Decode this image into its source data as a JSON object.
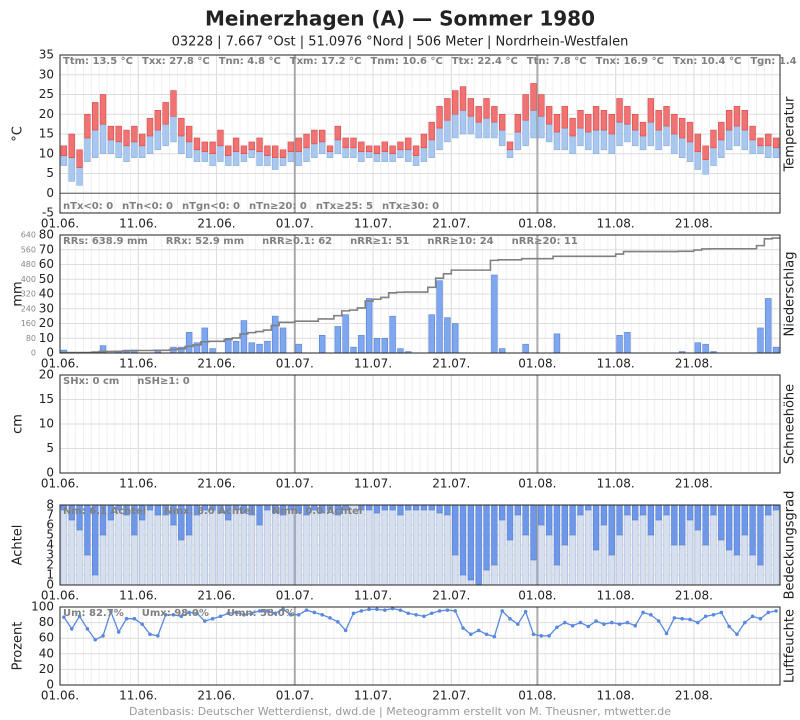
{
  "title": "Meinerzhagen (A)  —  Sommer 1980",
  "subtitle": "03228  |  7.667 °Ost  |  51.0976 °Nord  |  506 Meter  |  Nordrhein-Westfalen",
  "footer": "Datenbasis: Deutscher Wetterdienst, dwd.de  |  Meteogramm erstellt von M. Theusner, mtwetter.de",
  "chart_data": [
    {
      "type": "range_bar",
      "ylabel": "°C",
      "side_label": "Temperatur",
      "xlim": [
        0,
        92
      ],
      "ylim": [
        -5,
        35
      ],
      "yticks": [
        -5,
        0,
        5,
        10,
        15,
        20,
        25,
        30,
        35
      ],
      "xticks": [
        {
          "value": 0,
          "label": "01.06."
        },
        {
          "value": 10,
          "label": "11.06."
        },
        {
          "value": 20,
          "label": "21.06."
        },
        {
          "value": 30,
          "label": "01.07."
        },
        {
          "value": 40,
          "label": "11.07."
        },
        {
          "value": 50,
          "label": "21.07."
        },
        {
          "value": 61,
          "label": "01.08."
        },
        {
          "value": 71,
          "label": "11.08."
        },
        {
          "value": 81,
          "label": "21.08."
        }
      ],
      "stats_top": [
        "Ttm: 13.5 °C",
        "Txx: 27.8 °C",
        "Tnn: 4.8 °C",
        "Txm: 17.2 °C",
        "Tnm: 10.6 °C",
        "Ttx: 22.4 °C",
        "Ttn: 7.8 °C",
        "Tnx: 16.9 °C",
        "Txn: 10.4 °C",
        "Tgn: 1.4 °C"
      ],
      "stats_bottom": [
        "nTx<0: 0",
        "nTn<0: 0",
        "nTgn<0: 0",
        "nTn≥20: 0",
        "nTx≥25: 5",
        "nTx≥30: 0"
      ],
      "color_upper": "#f07272",
      "color_lower": "#a9c8ef",
      "x": [
        0,
        1,
        2,
        3,
        4,
        5,
        6,
        7,
        8,
        9,
        10,
        11,
        12,
        13,
        14,
        15,
        16,
        17,
        18,
        19,
        20,
        21,
        22,
        23,
        24,
        25,
        26,
        27,
        28,
        29,
        30,
        31,
        32,
        33,
        34,
        35,
        36,
        37,
        38,
        39,
        40,
        41,
        42,
        43,
        44,
        45,
        46,
        47,
        48,
        49,
        50,
        51,
        52,
        53,
        54,
        55,
        56,
        57,
        58,
        59,
        60,
        61,
        62,
        63,
        64,
        65,
        66,
        67,
        68,
        69,
        70,
        71,
        72,
        73,
        74,
        75,
        76,
        77,
        78,
        79,
        80,
        81,
        82,
        83,
        84,
        85,
        86,
        87,
        88,
        89,
        90,
        91
      ],
      "values_max": [
        12,
        15,
        11,
        20,
        23,
        25,
        17,
        17,
        16,
        17,
        15,
        19,
        21,
        23,
        26,
        19,
        17,
        14,
        13,
        13,
        16,
        12,
        14,
        12,
        13,
        14,
        12,
        12,
        11,
        13,
        14,
        15,
        16,
        16,
        12,
        17,
        14,
        14,
        13,
        12,
        12,
        13,
        12,
        13,
        14,
        12,
        15,
        18,
        22,
        24,
        26,
        27,
        24,
        22,
        24,
        22,
        20,
        13,
        20,
        25,
        27.8,
        25,
        22,
        20,
        22,
        19,
        21,
        20,
        22,
        21,
        20,
        24,
        22,
        20,
        18,
        24,
        21,
        22,
        20,
        19,
        18,
        15,
        12,
        16,
        18,
        21,
        22,
        21,
        17,
        14,
        15,
        14
      ],
      "values_mean": [
        9.5,
        9,
        6.5,
        14,
        16,
        17.5,
        13.5,
        13,
        12,
        13,
        12,
        14.5,
        16,
        17.5,
        19.5,
        14.5,
        13,
        11,
        10.5,
        10,
        12,
        9.5,
        10.5,
        10,
        11,
        10.5,
        9.5,
        9,
        9,
        10.5,
        10.5,
        11.5,
        12.5,
        13,
        10.5,
        13.5,
        11.5,
        11.5,
        10.5,
        10.5,
        10,
        10.5,
        10,
        11,
        11,
        9.5,
        11.5,
        13.5,
        16.5,
        18.5,
        20,
        21,
        19.5,
        18,
        19,
        18,
        16,
        11,
        15.5,
        18.5,
        21,
        19.5,
        17.5,
        15.5,
        16.5,
        14.5,
        16.5,
        15.5,
        16,
        16,
        15,
        18,
        17.5,
        16,
        14.5,
        18,
        16,
        17,
        15,
        14,
        13,
        10.5,
        8.5,
        11.5,
        13.5,
        16,
        17,
        16,
        13.5,
        12,
        12,
        11.5
      ],
      "values_min": [
        7,
        3,
        2,
        8,
        9,
        10,
        10,
        9,
        8,
        9,
        9,
        10,
        11,
        12,
        13,
        10,
        9,
        8,
        8,
        7,
        8,
        7,
        7,
        8,
        9,
        7,
        7,
        6,
        7,
        8,
        7,
        8,
        9,
        10,
        9,
        10,
        9,
        9,
        8,
        9,
        8,
        8,
        8,
        9,
        8,
        7,
        8,
        9,
        11,
        13,
        14,
        15,
        15,
        14,
        14,
        14,
        12,
        9,
        11,
        12,
        14,
        14,
        13,
        11,
        11,
        10,
        12,
        11,
        10,
        11,
        10,
        12,
        13,
        12,
        11,
        12,
        11,
        12,
        10,
        9,
        8,
        6,
        4.8,
        7,
        9,
        11,
        12,
        11,
        10,
        10,
        9,
        9
      ]
    },
    {
      "type": "bar",
      "ylabel": "mm",
      "side_label": "Niederschlag",
      "xlim": [
        0,
        92
      ],
      "ylim": [
        0,
        80
      ],
      "yticks": [
        0,
        10,
        20,
        30,
        40,
        50,
        60,
        70,
        80
      ],
      "y2lim": [
        0,
        640
      ],
      "y2ticks": [
        0,
        80,
        160,
        240,
        320,
        400,
        480,
        560,
        640
      ],
      "xticks": [
        {
          "value": 0,
          "label": "01.06."
        },
        {
          "value": 10,
          "label": "11.06."
        },
        {
          "value": 20,
          "label": "21.06."
        },
        {
          "value": 30,
          "label": "01.07."
        },
        {
          "value": 40,
          "label": "11.07."
        },
        {
          "value": 50,
          "label": "21.07."
        },
        {
          "value": 61,
          "label": "01.08."
        },
        {
          "value": 71,
          "label": "11.08."
        },
        {
          "value": 81,
          "label": "21.08."
        }
      ],
      "stats_top": [
        "RRs: 638.9 mm",
        "RRx: 52.9 mm",
        "nRR≥0.1: 62",
        "nRR≥1: 51",
        "nRR≥10: 24",
        "nRR≥20: 11"
      ],
      "color": "#7fa7ef",
      "line_color": "#808080",
      "x": [
        0,
        1,
        2,
        3,
        4,
        5,
        6,
        7,
        8,
        9,
        10,
        11,
        12,
        13,
        14,
        15,
        16,
        17,
        18,
        19,
        20,
        21,
        22,
        23,
        24,
        25,
        26,
        27,
        28,
        29,
        30,
        31,
        32,
        33,
        34,
        35,
        36,
        37,
        38,
        39,
        40,
        41,
        42,
        43,
        44,
        45,
        46,
        47,
        48,
        49,
        50,
        51,
        52,
        53,
        54,
        55,
        56,
        57,
        58,
        59,
        60,
        61,
        62,
        63,
        64,
        65,
        66,
        67,
        68,
        69,
        70,
        71,
        72,
        73,
        74,
        75,
        76,
        77,
        78,
        79,
        80,
        81,
        82,
        83,
        84,
        85,
        86,
        87,
        88,
        89,
        90,
        91
      ],
      "values": [
        2,
        0.5,
        0,
        0,
        1,
        5,
        0,
        1,
        2,
        2,
        0,
        0,
        1,
        0,
        4,
        4,
        14,
        7,
        17,
        3,
        0,
        10,
        8,
        22,
        7,
        6,
        8,
        25,
        17,
        0,
        6,
        0,
        0,
        12,
        0,
        18,
        26,
        4,
        12,
        37,
        10,
        10,
        25,
        3,
        1,
        0,
        0,
        26,
        49,
        24,
        20,
        0,
        0,
        0,
        0,
        52.9,
        3,
        0,
        0,
        6,
        0,
        0,
        0,
        13,
        0,
        0,
        0,
        0,
        0,
        0,
        0,
        12,
        14,
        0,
        0,
        0,
        0,
        0,
        0,
        1,
        0,
        7,
        6,
        1,
        0,
        0,
        0,
        0,
        0,
        17,
        37,
        4
      ]
    },
    {
      "type": "bar",
      "ylabel": "cm",
      "side_label": "Schneehöhe",
      "xlim": [
        0,
        92
      ],
      "ylim": [
        0,
        20
      ],
      "yticks": [
        0,
        5,
        10,
        15,
        20
      ],
      "xticks": [
        {
          "value": 0,
          "label": "01.06."
        },
        {
          "value": 10,
          "label": "11.06."
        },
        {
          "value": 20,
          "label": "21.06."
        },
        {
          "value": 30,
          "label": "01.07."
        },
        {
          "value": 40,
          "label": "11.07."
        },
        {
          "value": 50,
          "label": "21.07."
        },
        {
          "value": 61,
          "label": "01.08."
        },
        {
          "value": 71,
          "label": "11.08."
        },
        {
          "value": 81,
          "label": "21.08."
        }
      ],
      "stats_top": [
        "SHx: 0 cm",
        "nSH≥1: 0"
      ]
    },
    {
      "type": "cloud_bar",
      "ylabel": "Achtel",
      "side_label": "Bedeckungsgrad",
      "xlim": [
        0,
        92
      ],
      "ylim": [
        0,
        8
      ],
      "yticks": [
        0,
        1,
        2,
        3,
        4,
        5,
        6,
        7,
        8
      ],
      "xticks": [
        {
          "value": 0,
          "label": "01.06."
        },
        {
          "value": 10,
          "label": "11.06."
        },
        {
          "value": 20,
          "label": "21.06."
        },
        {
          "value": 30,
          "label": "01.07."
        },
        {
          "value": 40,
          "label": "11.07."
        },
        {
          "value": 50,
          "label": "21.07."
        },
        {
          "value": 61,
          "label": "01.08."
        },
        {
          "value": 71,
          "label": "11.08."
        },
        {
          "value": 81,
          "label": "21.08."
        }
      ],
      "stats_top": [
        "Nm: 6.1 Achtel",
        "Nmx: 8.0 Achtel",
        "Nmn: 0.0 Achtel"
      ],
      "color": "#d6dff0",
      "color_top": "#6f97e8",
      "x": [
        0,
        1,
        2,
        3,
        4,
        5,
        6,
        7,
        8,
        9,
        10,
        11,
        12,
        13,
        14,
        15,
        16,
        17,
        18,
        19,
        20,
        21,
        22,
        23,
        24,
        25,
        26,
        27,
        28,
        29,
        30,
        31,
        32,
        33,
        34,
        35,
        36,
        37,
        38,
        39,
        40,
        41,
        42,
        43,
        44,
        45,
        46,
        47,
        48,
        49,
        50,
        51,
        52,
        53,
        54,
        55,
        56,
        57,
        58,
        59,
        60,
        61,
        62,
        63,
        64,
        65,
        66,
        67,
        68,
        69,
        70,
        71,
        72,
        73,
        74,
        75,
        76,
        77,
        78,
        79,
        80,
        81,
        82,
        83,
        84,
        85,
        86,
        87,
        88,
        89,
        90,
        91
      ],
      "values": [
        7.5,
        6.5,
        5.5,
        3,
        1,
        5,
        6.5,
        7.5,
        7,
        5,
        6.5,
        7.5,
        7,
        7,
        6,
        4.5,
        5,
        7,
        7.5,
        7.5,
        7.2,
        6.5,
        7.5,
        7.2,
        7,
        6,
        7.5,
        7.2,
        7,
        7.5,
        7.2,
        7,
        7.5,
        7.2,
        7.5,
        7,
        7.5,
        8,
        7.5,
        7.5,
        7.2,
        7.5,
        7.5,
        7,
        7.5,
        7.5,
        7.5,
        7.5,
        7.2,
        7,
        3,
        1,
        0.5,
        0,
        1.5,
        2,
        6.5,
        4.5,
        7,
        5,
        2.5,
        6,
        5,
        2,
        4,
        5,
        7,
        7.5,
        3.5,
        6,
        3,
        5,
        7,
        6.5,
        7,
        5,
        6.5,
        7,
        4,
        4,
        6.5,
        5.5,
        4,
        7,
        4.5,
        3.5,
        3,
        5,
        3,
        2,
        7,
        7.5
      ]
    },
    {
      "type": "line",
      "ylabel": "Prozent",
      "side_label": "Luftfeuchte",
      "xlim": [
        0,
        92
      ],
      "ylim": [
        0,
        100
      ],
      "yticks": [
        0,
        20,
        40,
        60,
        80,
        100
      ],
      "xticks": [
        {
          "value": 0,
          "label": "01.06."
        },
        {
          "value": 10,
          "label": "11.06."
        },
        {
          "value": 20,
          "label": "21.06."
        },
        {
          "value": 30,
          "label": "01.07."
        },
        {
          "value": 40,
          "label": "11.07."
        },
        {
          "value": 50,
          "label": "21.07."
        },
        {
          "value": 61,
          "label": "01.08."
        },
        {
          "value": 71,
          "label": "11.08."
        },
        {
          "value": 81,
          "label": "21.08."
        }
      ],
      "stats_top": [
        "Um: 82.7%",
        "Umx: 98.0%",
        "Umn: 58.0%"
      ],
      "color": "#5a8ae0",
      "x": [
        0,
        1,
        2,
        3,
        4,
        5,
        6,
        7,
        8,
        9,
        10,
        11,
        12,
        13,
        14,
        15,
        16,
        17,
        18,
        19,
        20,
        21,
        22,
        23,
        24,
        25,
        26,
        27,
        28,
        29,
        30,
        31,
        32,
        33,
        34,
        35,
        36,
        37,
        38,
        39,
        40,
        41,
        42,
        43,
        44,
        45,
        46,
        47,
        48,
        49,
        50,
        51,
        52,
        53,
        54,
        55,
        56,
        57,
        58,
        59,
        60,
        61,
        62,
        63,
        64,
        65,
        66,
        67,
        68,
        69,
        70,
        71,
        72,
        73,
        74,
        75,
        76,
        77,
        78,
        79,
        80,
        81,
        82,
        83,
        84,
        85,
        86,
        87,
        88,
        89,
        90,
        91
      ],
      "values": [
        87,
        72,
        88,
        72,
        58,
        63,
        94,
        68,
        85,
        85,
        78,
        65,
        63,
        90,
        90,
        88,
        93,
        92,
        82,
        85,
        88,
        92,
        93,
        90,
        92,
        95,
        95,
        92,
        97,
        90,
        90,
        96,
        93,
        90,
        86,
        81,
        70,
        92,
        95,
        97,
        97,
        96,
        98,
        96,
        92,
        90,
        88,
        92,
        95,
        96,
        95,
        73,
        65,
        70,
        65,
        62,
        95,
        85,
        78,
        94,
        65,
        63,
        63,
        74,
        80,
        76,
        80,
        75,
        82,
        78,
        80,
        78,
        80,
        76,
        93,
        90,
        82,
        66,
        86,
        85,
        84,
        80,
        88,
        90,
        93,
        75,
        65,
        80,
        88,
        85,
        93,
        95
      ]
    }
  ]
}
